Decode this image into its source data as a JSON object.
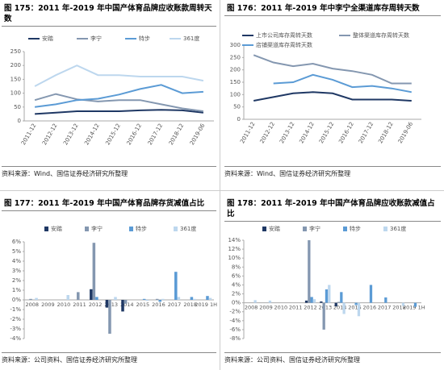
{
  "chart_data": [
    {
      "type": "line",
      "title": "图 175：2011 年-2019 年中国产体育品牌应收账款周转天数",
      "source": "资料来源：Wind、国信证券经济研究所整理",
      "categories": [
        "2011-12",
        "2012-12",
        "2013-12",
        "2014-12",
        "2015-12",
        "2016-12",
        "2017-12",
        "2018-12",
        "2019-06"
      ],
      "series": [
        {
          "name": "安踏",
          "color": "#1f3864",
          "values": [
            25,
            30,
            35,
            35,
            35,
            38,
            40,
            38,
            30
          ]
        },
        {
          "name": "李宁",
          "color": "#8497b0",
          "values": [
            75,
            97,
            78,
            70,
            75,
            75,
            60,
            45,
            35
          ]
        },
        {
          "name": "特步",
          "color": "#5b9bd5",
          "values": [
            50,
            60,
            75,
            80,
            95,
            115,
            130,
            100,
            105
          ]
        },
        {
          "name": "361度",
          "color": "#bdd7ee",
          "values": [
            125,
            165,
            200,
            165,
            165,
            160,
            160,
            160,
            145
          ]
        }
      ],
      "ylim": [
        0,
        250
      ],
      "yticks": [
        0,
        50,
        100,
        150,
        200,
        250
      ]
    },
    {
      "type": "line",
      "title": "图 176：2011 年-2019 年中李宁全渠道库存周转天数",
      "source": "资料来源：Wind、国信证券经济研究所整理",
      "categories": [
        "2011-12",
        "2012-12",
        "2013-12",
        "2014-12",
        "2015-12",
        "2016-12",
        "2017-12",
        "2018-12",
        "2019-06"
      ],
      "series": [
        {
          "name": "上市公司库存周转天数",
          "color": "#1f3864",
          "values": [
            75,
            90,
            105,
            110,
            105,
            80,
            80,
            80,
            75
          ]
        },
        {
          "name": "整体渠道库存周转天数",
          "color": "#8497b0",
          "values": [
            260,
            230,
            215,
            225,
            205,
            195,
            180,
            145,
            145
          ]
        },
        {
          "name": "店铺渠道库存周转天数",
          "color": "#5b9bd5",
          "values": [
            null,
            145,
            150,
            180,
            160,
            130,
            135,
            125,
            110
          ]
        }
      ],
      "ylim": [
        0,
        300
      ],
      "yticks": [
        0,
        50,
        100,
        150,
        200,
        250,
        300
      ]
    },
    {
      "type": "bar",
      "title": "图 177：2011 年-2019 年中国产体育品牌存货减值占比",
      "source": "资料来源：公司资料、国信证券经济研究所整理",
      "categories": [
        "2008",
        "2009",
        "2010",
        "2011",
        "2012",
        "2013",
        "2014",
        "2015",
        "2016",
        "2017",
        "2018",
        "2019 1H"
      ],
      "series": [
        {
          "name": "安踏",
          "color": "#1f3864",
          "values": [
            0,
            0,
            0,
            0,
            1.1,
            -0.8,
            -1.2,
            0,
            0,
            0,
            0,
            0
          ]
        },
        {
          "name": "李宁",
          "color": "#8497b0",
          "values": [
            0.1,
            0,
            0,
            0.8,
            5.9,
            -3.5,
            -0.4,
            0,
            0.1,
            0,
            0,
            0
          ]
        },
        {
          "name": "特步",
          "color": "#5b9bd5",
          "values": [
            0,
            0,
            0,
            0,
            0.3,
            0,
            0,
            0.1,
            -0.2,
            2.9,
            0.3,
            0.4
          ]
        },
        {
          "name": "361度",
          "color": "#bdd7ee",
          "values": [
            0.2,
            0,
            0.5,
            0,
            0,
            0.3,
            0,
            -0.1,
            0.1,
            0.3,
            0.1,
            0.2
          ]
        }
      ],
      "ylim": [
        -4,
        6
      ],
      "yticks": [
        {
          "value": -4,
          "label": "-4%"
        },
        {
          "value": -3,
          "label": "-3%"
        },
        {
          "value": -2,
          "label": "-2%"
        },
        {
          "value": -1,
          "label": "-1%"
        },
        {
          "value": 0,
          "label": "0%"
        },
        {
          "value": 1,
          "label": "1%"
        },
        {
          "value": 2,
          "label": "2%"
        },
        {
          "value": 3,
          "label": "3%"
        },
        {
          "value": 4,
          "label": "4%"
        },
        {
          "value": 5,
          "label": "5%"
        },
        {
          "value": 6,
          "label": "6%"
        }
      ]
    },
    {
      "type": "bar",
      "title": "图 178：2011 年-2019 年中国产体育品牌应收账款减值占比",
      "source": "资料来源：公司资料、国信证券经济研究所整理",
      "categories": [
        "2008",
        "2009",
        "2010",
        "2011",
        "2012",
        "2013",
        "2014",
        "2015",
        "2016",
        "2017",
        "2018",
        "2019 1H"
      ],
      "series": [
        {
          "name": "安踏",
          "color": "#1f3864",
          "values": [
            0,
            0,
            0,
            0,
            0.5,
            0.3,
            -0.8,
            0,
            0,
            0,
            0,
            0
          ]
        },
        {
          "name": "李宁",
          "color": "#8497b0",
          "values": [
            0,
            0,
            0,
            0,
            14,
            -6,
            0.2,
            0,
            0,
            0,
            0,
            0
          ]
        },
        {
          "name": "特步",
          "color": "#5b9bd5",
          "values": [
            0,
            0,
            0,
            0,
            1.3,
            3,
            2.4,
            -0.5,
            4,
            1.2,
            0,
            -0.9
          ]
        },
        {
          "name": "361度",
          "color": "#bdd7ee",
          "values": [
            0.6,
            0.5,
            0,
            0,
            0.8,
            4,
            -2.5,
            -3,
            0,
            0,
            -0.7,
            0
          ]
        }
      ],
      "ylim": [
        -8,
        14
      ],
      "yticks": [
        {
          "value": -8,
          "label": "-8%"
        },
        {
          "value": -6,
          "label": "-6%"
        },
        {
          "value": -4,
          "label": "-4%"
        },
        {
          "value": -2,
          "label": "-2%"
        },
        {
          "value": 0,
          "label": "0%"
        },
        {
          "value": 2,
          "label": "2%"
        },
        {
          "value": 4,
          "label": "4%"
        },
        {
          "value": 6,
          "label": "6%"
        },
        {
          "value": 8,
          "label": "8%"
        },
        {
          "value": 10,
          "label": "10%"
        },
        {
          "value": 12,
          "label": "12%"
        },
        {
          "value": 14,
          "label": "14%"
        }
      ]
    }
  ]
}
